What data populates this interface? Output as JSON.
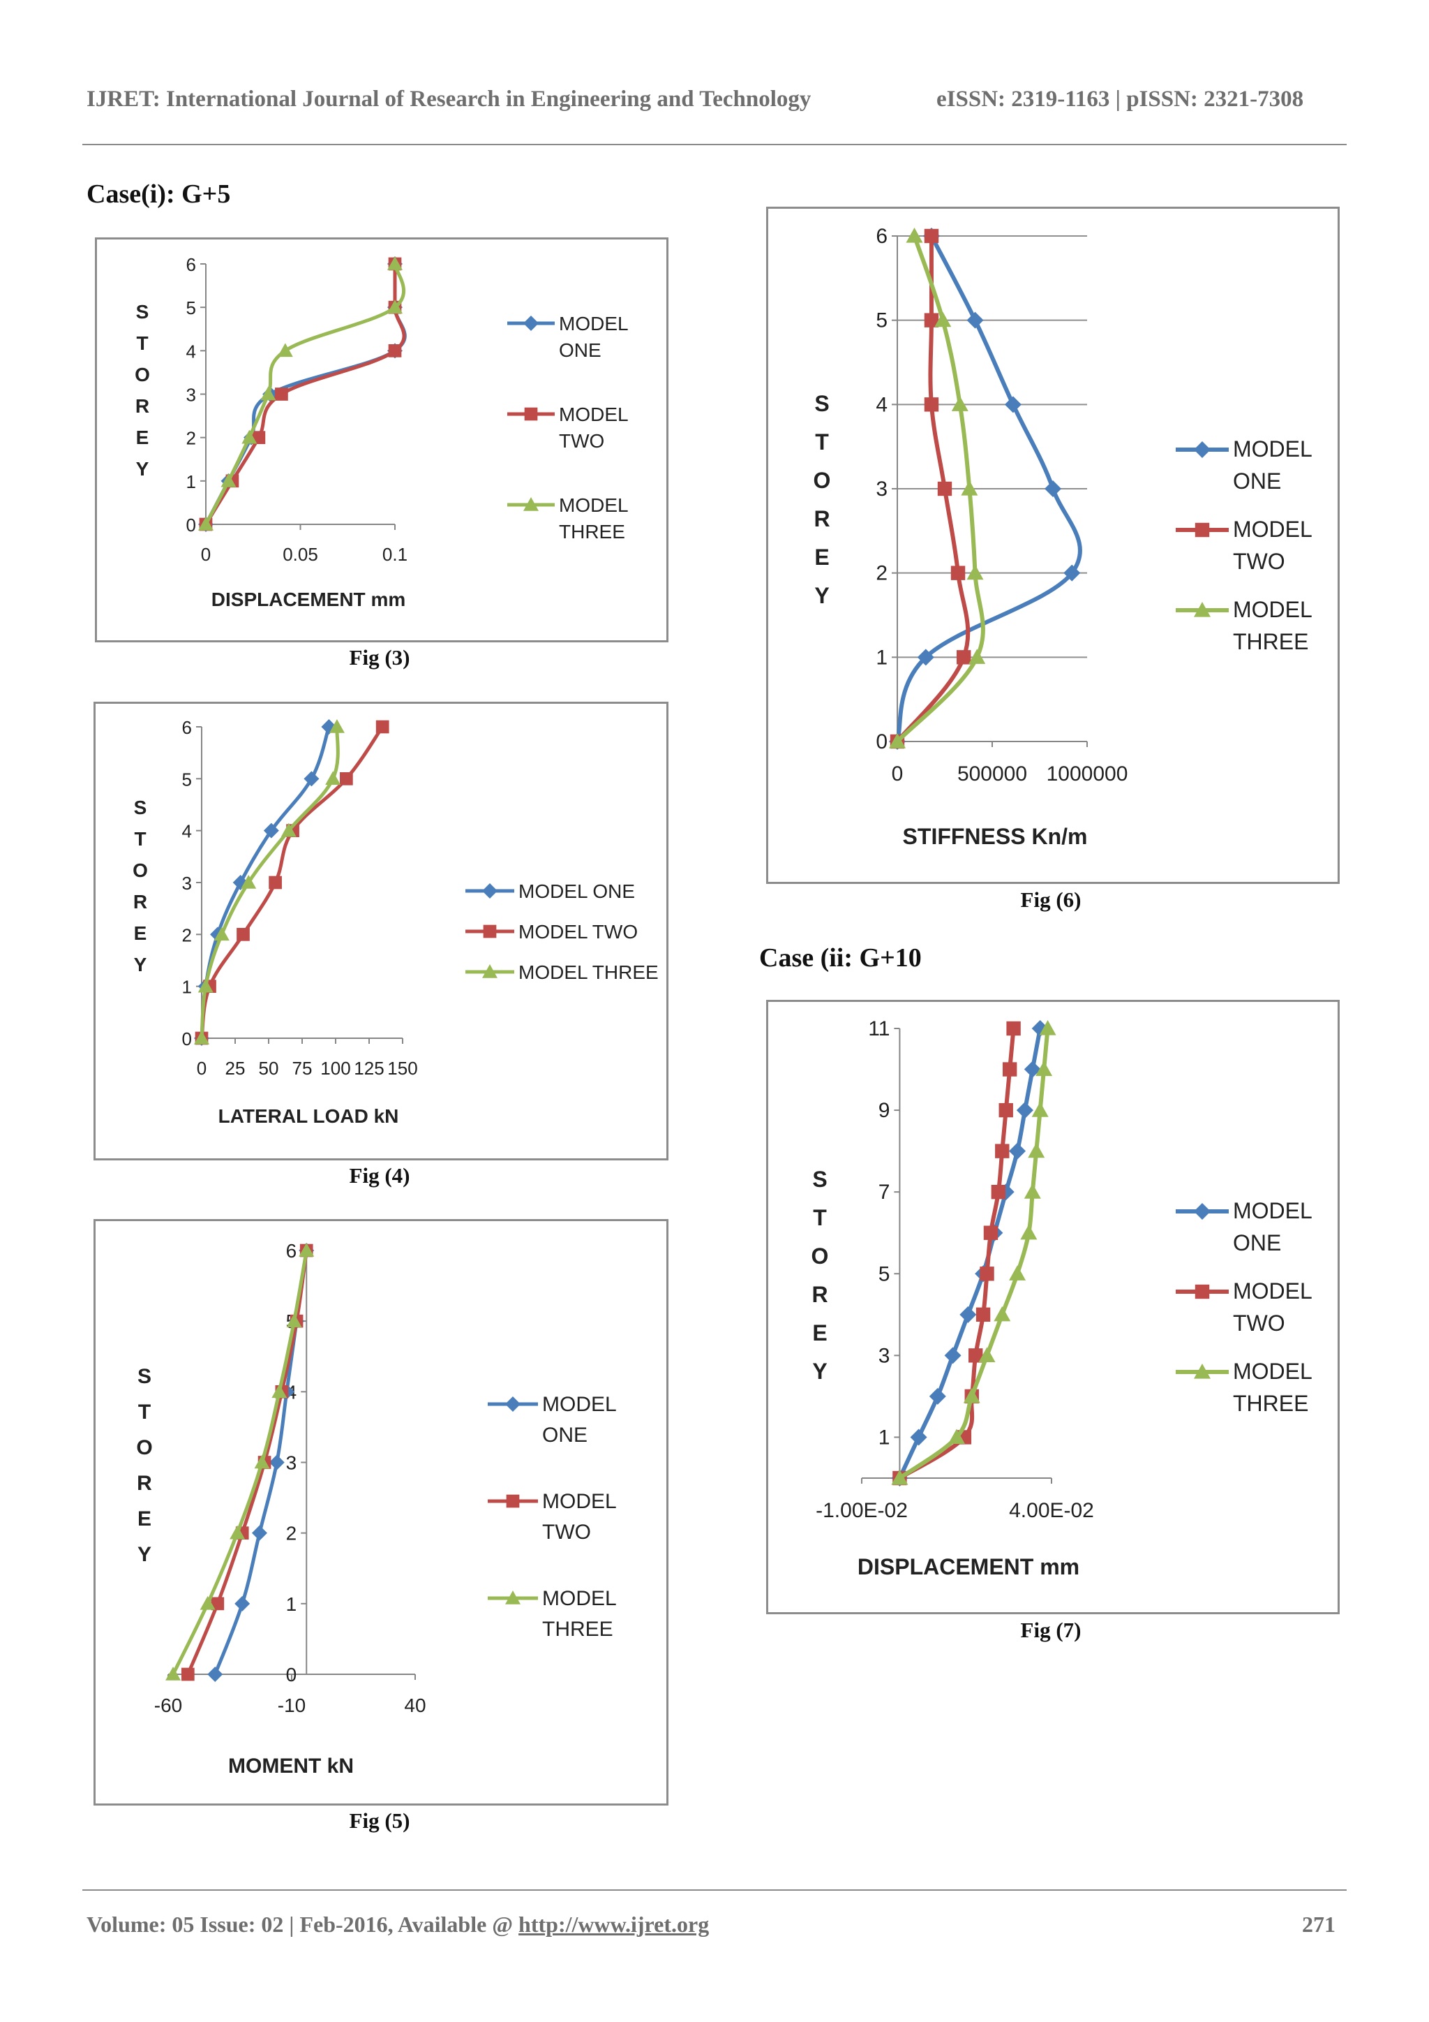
{
  "header": {
    "journal": "IJRET: International Journal of Research in Engineering and Technology",
    "issn": "eISSN: 2319-1163 | pISSN: 2321-7308"
  },
  "sections": {
    "case1": "Case(i):  G+5",
    "case2": "Case (ii: G+10"
  },
  "captions": {
    "fig3": "Fig (3)",
    "fig4": "Fig (4)",
    "fig5": "Fig (5)",
    "fig6": "Fig (6)",
    "fig7": "Fig (7)"
  },
  "footer": {
    "volume": "Volume: 05 Issue: 02 | Feb-2016, Available @ ",
    "url": "http://www.ijret.org",
    "page": "271"
  },
  "colors": {
    "model_one": "#4a7ebb",
    "model_two": "#be4b48",
    "model_three": "#98b954"
  },
  "chart_data": [
    {
      "id": "fig3",
      "type": "line",
      "title": "",
      "xlabel": "DISPLACEMENT mm",
      "ylabel": "STOREY",
      "xlim": [
        0,
        0.1
      ],
      "ylim": [
        0,
        6
      ],
      "xticks": [
        "0",
        "0.05",
        "0.1"
      ],
      "yticks": [
        "0",
        "1",
        "2",
        "3",
        "4",
        "5",
        "6"
      ],
      "legend_labels": [
        "MODEL",
        "ONE",
        "MODEL",
        "TWO",
        "MODEL",
        "THREE"
      ],
      "series": [
        {
          "name": "MODEL ONE",
          "x": [
            0,
            0.012,
            0.024,
            0.034,
            0.1,
            0.1,
            0.1
          ],
          "y": [
            0,
            1,
            2,
            3,
            4,
            5,
            6
          ]
        },
        {
          "name": "MODEL TWO",
          "x": [
            0,
            0.014,
            0.028,
            0.04,
            0.1,
            0.1,
            0.1
          ],
          "y": [
            0,
            1,
            2,
            3,
            4,
            5,
            6
          ]
        },
        {
          "name": "MODEL THREE",
          "x": [
            0,
            0.012,
            0.023,
            0.033,
            0.042,
            0.1,
            0.1
          ],
          "y": [
            0,
            1,
            2,
            3,
            4,
            5,
            6
          ]
        }
      ]
    },
    {
      "id": "fig4",
      "type": "line",
      "title": "",
      "xlabel": "LATERAL LOAD kN",
      "ylabel": "STOREY",
      "xlim": [
        0,
        150
      ],
      "ylim": [
        0,
        6
      ],
      "xticks": [
        "0",
        "25",
        "50",
        "75",
        "100",
        "125",
        "150"
      ],
      "yticks": [
        "0",
        "1",
        "2",
        "3",
        "4",
        "5",
        "6"
      ],
      "legend_labels": [
        "MODEL ONE",
        "MODEL TWO",
        "MODEL THREE"
      ],
      "series": [
        {
          "name": "MODEL ONE",
          "x": [
            0,
            3,
            12,
            29,
            52,
            82,
            95
          ],
          "y": [
            0,
            1,
            2,
            3,
            4,
            5,
            6
          ]
        },
        {
          "name": "MODEL TWO",
          "x": [
            0,
            6,
            31,
            55,
            68,
            108,
            135
          ],
          "y": [
            0,
            1,
            2,
            3,
            4,
            5,
            6
          ]
        },
        {
          "name": "MODEL THREE",
          "x": [
            0,
            3,
            15,
            35,
            65,
            98,
            101
          ],
          "y": [
            0,
            1,
            2,
            3,
            4,
            5,
            6
          ]
        }
      ]
    },
    {
      "id": "fig5",
      "type": "line",
      "title": "",
      "xlabel": "MOMENT kN",
      "ylabel": "STOREY",
      "xlim": [
        -60,
        40
      ],
      "ylim": [
        0,
        6
      ],
      "xticks": [
        "-60",
        "-10",
        "40"
      ],
      "yticks": [
        "0",
        "1",
        "2",
        "3",
        "4",
        "5",
        "6"
      ],
      "legend_labels": [
        "MODEL",
        "ONE",
        "MODEL",
        "TWO",
        "MODEL",
        "THREE"
      ],
      "series": [
        {
          "name": "MODEL ONE",
          "x": [
            -41,
            -30,
            -23,
            -16,
            -12,
            -8,
            -4
          ],
          "y": [
            0,
            1,
            2,
            3,
            4,
            5,
            6
          ]
        },
        {
          "name": "MODEL TWO",
          "x": [
            -52,
            -40,
            -30,
            -21,
            -14,
            -8,
            -4
          ],
          "y": [
            0,
            1,
            2,
            3,
            4,
            5,
            6
          ]
        },
        {
          "name": "MODEL THREE",
          "x": [
            -58,
            -44,
            -32,
            -22,
            -15,
            -9,
            -4
          ],
          "y": [
            0,
            1,
            2,
            3,
            4,
            5,
            6
          ]
        }
      ]
    },
    {
      "id": "fig6",
      "type": "line",
      "title": "",
      "xlabel": "STIFFNESS Kn/m",
      "ylabel": "STOREY",
      "xlim": [
        0,
        1000000
      ],
      "ylim": [
        0,
        6
      ],
      "xticks": [
        "0",
        "500000",
        "1000000"
      ],
      "yticks": [
        "0",
        "1",
        "2",
        "3",
        "4",
        "5",
        "6"
      ],
      "legend_labels": [
        "MODEL",
        "ONE",
        "MODEL",
        "TWO",
        "MODEL",
        "THREE"
      ],
      "series": [
        {
          "name": "MODEL ONE",
          "x": [
            0,
            150000,
            920000,
            820000,
            610000,
            410000,
            180000
          ],
          "y": [
            0,
            1,
            2,
            3,
            4,
            5,
            6
          ]
        },
        {
          "name": "MODEL TWO",
          "x": [
            0,
            350000,
            320000,
            250000,
            180000,
            180000,
            180000
          ],
          "y": [
            0,
            1,
            2,
            3,
            4,
            5,
            6
          ]
        },
        {
          "name": "MODEL THREE",
          "x": [
            0,
            420000,
            410000,
            380000,
            330000,
            240000,
            90000
          ],
          "y": [
            0,
            1,
            2,
            3,
            4,
            5,
            6
          ]
        }
      ]
    },
    {
      "id": "fig7",
      "type": "line",
      "title": "",
      "xlabel": "DISPLACEMENT mm",
      "ylabel": "STOREY",
      "xlim": [
        -0.01,
        0.04
      ],
      "ylim": [
        0,
        11
      ],
      "xticks": [
        "-1.00E-02",
        "4.00E-02"
      ],
      "xtick_values": [
        -0.01,
        0.04
      ],
      "yticks": [
        "1",
        "3",
        "5",
        "7",
        "9",
        "11"
      ],
      "ytick_values": [
        1,
        3,
        5,
        7,
        9,
        11
      ],
      "legend_labels": [
        "MODEL",
        "ONE",
        "MODEL",
        "TWO",
        "MODEL",
        "THREE"
      ],
      "series": [
        {
          "name": "MODEL ONE",
          "x": [
            0,
            0.005,
            0.01,
            0.014,
            0.018,
            0.022,
            0.025,
            0.028,
            0.031,
            0.033,
            0.035,
            0.037
          ],
          "y": [
            0,
            1,
            2,
            3,
            4,
            5,
            6,
            7,
            8,
            9,
            10,
            11
          ]
        },
        {
          "name": "MODEL TWO",
          "x": [
            0,
            0.017,
            0.019,
            0.02,
            0.022,
            0.023,
            0.024,
            0.026,
            0.027,
            0.028,
            0.029,
            0.03
          ],
          "y": [
            0,
            1,
            2,
            3,
            4,
            5,
            6,
            7,
            8,
            9,
            10,
            11
          ]
        },
        {
          "name": "MODEL THREE",
          "x": [
            0,
            0.015,
            0.019,
            0.023,
            0.027,
            0.031,
            0.034,
            0.035,
            0.036,
            0.037,
            0.038,
            0.039
          ],
          "y": [
            0,
            1,
            2,
            3,
            4,
            5,
            6,
            7,
            8,
            9,
            10,
            11
          ]
        }
      ]
    }
  ]
}
